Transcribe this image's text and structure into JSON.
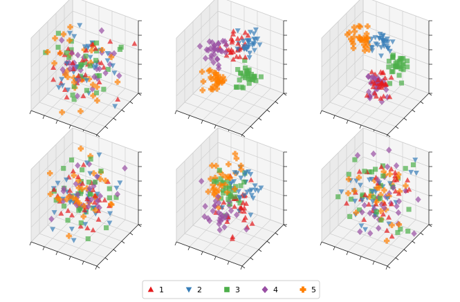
{
  "chart_data": {
    "type": "scatter",
    "subtype": "3d-scatter-grid",
    "layout": {
      "rows": 2,
      "cols": 3
    },
    "grid": true,
    "legend_placement": "bottom-center",
    "axis_ranges": {
      "x": [
        -1,
        1
      ],
      "y": [
        -1,
        1
      ],
      "z": [
        -1,
        1
      ]
    },
    "tick_labels": "none",
    "series": [
      {
        "name": "1",
        "marker": "triangle-up",
        "color": "#e41a1c"
      },
      {
        "name": "2",
        "marker": "triangle-down",
        "color": "#377eb8"
      },
      {
        "name": "3",
        "marker": "square",
        "color": "#4daf4a"
      },
      {
        "name": "4",
        "marker": "diamond",
        "color": "#984ea3"
      },
      {
        "name": "5",
        "marker": "plus",
        "color": "#ff7f00"
      }
    ],
    "panels": [
      {
        "cluster_centers": [
          [
            0,
            0,
            0
          ],
          [
            0,
            0,
            0
          ],
          [
            0,
            0,
            0
          ],
          [
            0,
            0,
            0
          ],
          [
            0,
            0,
            0
          ]
        ],
        "spread": 0.45,
        "seed": 11
      },
      {
        "cluster_centers": [
          [
            0.1,
            0.1,
            0.55
          ],
          [
            0.2,
            0.45,
            0.35
          ],
          [
            0.35,
            0.15,
            -0.25
          ],
          [
            -0.45,
            0.05,
            0.25
          ],
          [
            -0.15,
            -0.45,
            -0.25
          ]
        ],
        "spread": 0.16,
        "seed": 23
      },
      {
        "cluster_centers": [
          [
            0.2,
            0.0,
            -0.55
          ],
          [
            0.0,
            0.35,
            0.45
          ],
          [
            0.45,
            0.35,
            -0.05
          ],
          [
            0.1,
            -0.15,
            -0.45
          ],
          [
            -0.5,
            0.1,
            0.55
          ]
        ],
        "spread": 0.15,
        "seed": 37
      },
      {
        "cluster_centers": [
          [
            0,
            0,
            0
          ],
          [
            0,
            0,
            0
          ],
          [
            0,
            0,
            0
          ],
          [
            0,
            0,
            0
          ],
          [
            0,
            0,
            0
          ]
        ],
        "spread": 0.42,
        "seed": 41
      },
      {
        "cluster_centers": [
          [
            0.35,
            -0.1,
            -0.1
          ],
          [
            0.2,
            0.3,
            0.25
          ],
          [
            0.0,
            0.0,
            0.15
          ],
          [
            -0.15,
            -0.3,
            -0.45
          ],
          [
            -0.35,
            0.15,
            0.3
          ]
        ],
        "spread": 0.28,
        "seed": 53
      },
      {
        "cluster_centers": [
          [
            0,
            0,
            0
          ],
          [
            0,
            0,
            0
          ],
          [
            0,
            0,
            0
          ],
          [
            0,
            0,
            0
          ],
          [
            0,
            0,
            0
          ]
        ],
        "spread": 0.45,
        "seed": 67
      }
    ],
    "points_per_cluster": 30
  }
}
